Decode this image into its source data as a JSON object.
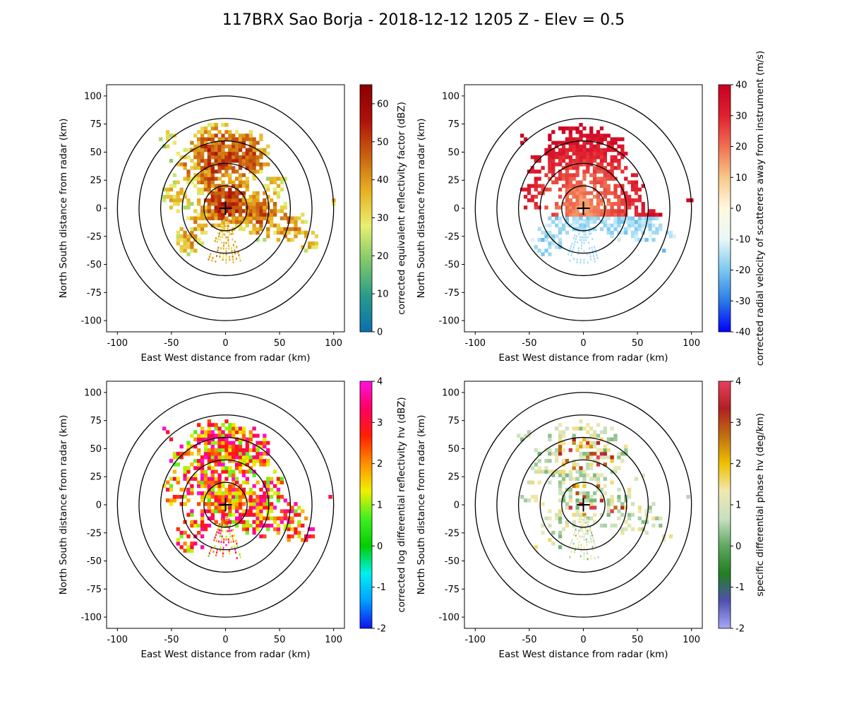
{
  "figure": {
    "title": "117BRX Sao Borja - 2018-12-12 1205 Z -  Elev = 0.5"
  },
  "chart_data": [
    {
      "type": "heatmap",
      "panel": "top-left",
      "field": "reflectivity",
      "xlabel": "East West distance from radar (km)",
      "ylabel": "North South distance from radar (km)",
      "xlim": [
        -110,
        110
      ],
      "ylim": [
        -110,
        110
      ],
      "xticks": [
        "-100",
        "-50",
        "0",
        "50",
        "100"
      ],
      "yticks": [
        "100",
        "75",
        "50",
        "25",
        "0",
        "-25",
        "-50",
        "-75",
        "-100"
      ],
      "range_rings_km": [
        20,
        40,
        60,
        80,
        100
      ],
      "colorbar": {
        "label": "corrected equivalent reflectivity factor (dBZ)",
        "min": 0,
        "max": 65,
        "ticks": [
          "0",
          "10",
          "20",
          "30",
          "40",
          "50",
          "60"
        ],
        "colors": [
          "#0a6fb0",
          "#2a9a8a",
          "#7ec86a",
          "#e8f070",
          "#e8b020",
          "#c86010",
          "#b01008",
          "#8a0000"
        ]
      }
    },
    {
      "type": "heatmap",
      "panel": "top-right",
      "field": "velocity",
      "xlabel": "East West distance from radar (km)",
      "ylabel": "North South distance from radar (km)",
      "xlim": [
        -110,
        110
      ],
      "ylim": [
        -110,
        110
      ],
      "xticks": [
        "-100",
        "-50",
        "0",
        "50",
        "100"
      ],
      "yticks": [
        "100",
        "75",
        "50",
        "25",
        "0",
        "-25",
        "-50",
        "-75",
        "-100"
      ],
      "range_rings_km": [
        20,
        40,
        60,
        80,
        100
      ],
      "colorbar": {
        "label": "corrected radial velocity of scatterers away from instrument (m/s)",
        "min": -40,
        "max": 40,
        "ticks": [
          "-40",
          "-30",
          "-20",
          "-10",
          "0",
          "10",
          "20",
          "30",
          "40"
        ],
        "colors": [
          "#0000ff",
          "#2a7ae8",
          "#7ac8f0",
          "#e8f8f8",
          "#fff8e0",
          "#f8c888",
          "#f07050",
          "#e02030",
          "#c80020"
        ]
      }
    },
    {
      "type": "heatmap",
      "panel": "bottom-left",
      "field": "differential_reflectivity",
      "xlabel": "East West distance from radar (km)",
      "ylabel": "North South distance from radar (km)",
      "xlim": [
        -110,
        110
      ],
      "ylim": [
        -110,
        110
      ],
      "xticks": [
        "-100",
        "-50",
        "0",
        "50",
        "100"
      ],
      "yticks": [
        "100",
        "75",
        "50",
        "25",
        "0",
        "-25",
        "-50",
        "-75",
        "-100"
      ],
      "range_rings_km": [
        20,
        40,
        60,
        80,
        100
      ],
      "colorbar": {
        "label": "corrected log differential reflectivity hv (dBZ)",
        "min": -2,
        "max": 4,
        "ticks": [
          "-2",
          "-1",
          "0",
          "1",
          "2",
          "3",
          "4"
        ],
        "colors": [
          "#1010f0",
          "#00a0ff",
          "#00f0f0",
          "#00d000",
          "#40f020",
          "#f0f000",
          "#ff9000",
          "#ff2000",
          "#ff0060",
          "#ff10e0"
        ]
      }
    },
    {
      "type": "heatmap",
      "panel": "bottom-right",
      "field": "specific_differential_phase",
      "xlabel": "East West distance from radar (km)",
      "ylabel": "North South distance from radar (km)",
      "xlim": [
        -110,
        110
      ],
      "ylim": [
        -110,
        110
      ],
      "xticks": [
        "-100",
        "-50",
        "0",
        "50",
        "100"
      ],
      "yticks": [
        "100",
        "75",
        "50",
        "25",
        "0",
        "-25",
        "-50",
        "-75",
        "-100"
      ],
      "range_rings_km": [
        20,
        40,
        60,
        80,
        100
      ],
      "colorbar": {
        "label": "specific differential phase hv (deg/km)",
        "min": -2,
        "max": 4,
        "ticks": [
          "-2",
          "-1",
          "0",
          "1",
          "2",
          "3",
          "4"
        ],
        "colors": [
          "#a8a8f8",
          "#5050b0",
          "#208020",
          "#60a860",
          "#c8e0c0",
          "#f0e8b0",
          "#f0c000",
          "#c07010",
          "#b02020",
          "#e84060"
        ]
      }
    }
  ]
}
